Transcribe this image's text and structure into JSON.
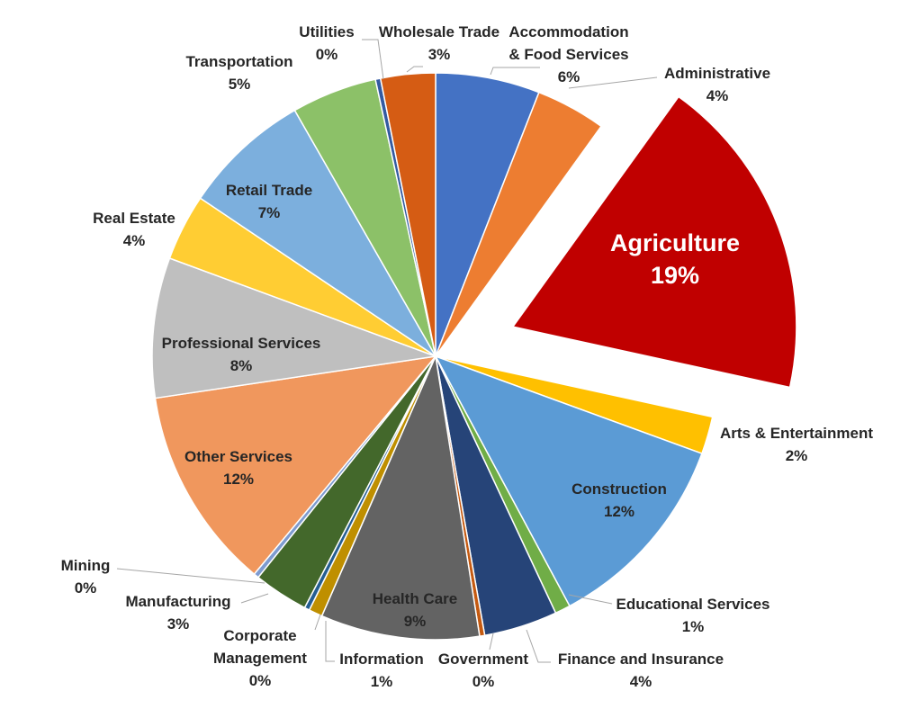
{
  "chart_data": {
    "type": "pie",
    "title": "",
    "slices": [
      {
        "name": "Accommodation & Food Services",
        "label_lines": [
          "Accommodation",
          "& Food Services"
        ],
        "pct_label": "6%",
        "value": 6.1,
        "color": "#4472c4",
        "label_mode": "outside",
        "exploded": false
      },
      {
        "name": "Administrative",
        "label_lines": [
          "Administrative"
        ],
        "pct_label": "4%",
        "value": 4.1,
        "color": "#ed7d31",
        "label_mode": "outside",
        "exploded": false
      },
      {
        "name": "Agriculture",
        "label_lines": [
          "Agriculture"
        ],
        "pct_label": "19%",
        "value": 19.0,
        "color": "#c00000",
        "label_mode": "inside-big",
        "exploded": true
      },
      {
        "name": "Arts & Entertainment",
        "label_lines": [
          "Arts & Entertainment"
        ],
        "pct_label": "2%",
        "value": 2.2,
        "color": "#ffc000",
        "label_mode": "outside",
        "exploded": false
      },
      {
        "name": "Construction",
        "label_lines": [
          "Construction"
        ],
        "pct_label": "12%",
        "value": 11.9,
        "color": "#5b9bd5",
        "label_mode": "inside",
        "exploded": false
      },
      {
        "name": "Educational Services",
        "label_lines": [
          "Educational Services"
        ],
        "pct_label": "1%",
        "value": 0.9,
        "color": "#70ad47",
        "label_mode": "outside",
        "exploded": false
      },
      {
        "name": "Finance and Insurance",
        "label_lines": [
          "Finance and Insurance"
        ],
        "pct_label": "4%",
        "value": 4.3,
        "color": "#264478",
        "label_mode": "outside",
        "exploded": false
      },
      {
        "name": "Government",
        "label_lines": [
          "Government"
        ],
        "pct_label": "0%",
        "value": 0.3,
        "color": "#c55a11",
        "label_mode": "outside",
        "exploded": false
      },
      {
        "name": "Health Care",
        "label_lines": [
          "Health Care"
        ],
        "pct_label": "9%",
        "value": 9.3,
        "color": "#636363",
        "label_mode": "inside",
        "exploded": false
      },
      {
        "name": "Information",
        "label_lines": [
          "Information"
        ],
        "pct_label": "1%",
        "value": 0.8,
        "color": "#bf8f00",
        "label_mode": "outside",
        "exploded": false
      },
      {
        "name": "Corporate Management",
        "label_lines": [
          "Corporate",
          "Management"
        ],
        "pct_label": "0%",
        "value": 0.3,
        "color": "#255e91",
        "label_mode": "outside",
        "exploded": false
      },
      {
        "name": "Manufacturing",
        "label_lines": [
          "Manufacturing"
        ],
        "pct_label": "3%",
        "value": 3.2,
        "color": "#43682b",
        "label_mode": "outside",
        "exploded": false
      },
      {
        "name": "Mining",
        "label_lines": [
          "Mining"
        ],
        "pct_label": "0%",
        "value": 0.3,
        "color": "#7e9bd0",
        "label_mode": "outside",
        "exploded": false
      },
      {
        "name": "Other Services",
        "label_lines": [
          "Other Services"
        ],
        "pct_label": "12%",
        "value": 11.9,
        "color": "#f0975d",
        "label_mode": "inside",
        "exploded": false
      },
      {
        "name": "Professional Services",
        "label_lines": [
          "Professional Services"
        ],
        "pct_label": "8%",
        "value": 8.2,
        "color": "#bfbfbf",
        "label_mode": "inside",
        "exploded": false
      },
      {
        "name": "Real Estate",
        "label_lines": [
          "Real Estate"
        ],
        "pct_label": "4%",
        "value": 3.9,
        "color": "#ffcd33",
        "label_mode": "outside",
        "exploded": false
      },
      {
        "name": "Retail Trade",
        "label_lines": [
          "Retail Trade"
        ],
        "pct_label": "7%",
        "value": 7.5,
        "color": "#7cafdd",
        "label_mode": "inside",
        "exploded": false
      },
      {
        "name": "Transportation",
        "label_lines": [
          "Transportation"
        ],
        "pct_label": "5%",
        "value": 5.0,
        "color": "#8cc168",
        "label_mode": "outside",
        "exploded": false
      },
      {
        "name": "Utilities",
        "label_lines": [
          "Utilities"
        ],
        "pct_label": "0%",
        "value": 0.3,
        "color": "#335aa1",
        "label_mode": "outside",
        "exploded": false
      },
      {
        "name": "Wholesale Trade",
        "label_lines": [
          "Wholesale Trade"
        ],
        "pct_label": "3%",
        "value": 3.2,
        "color": "#d55c14",
        "label_mode": "outside",
        "exploded": false
      }
    ]
  }
}
